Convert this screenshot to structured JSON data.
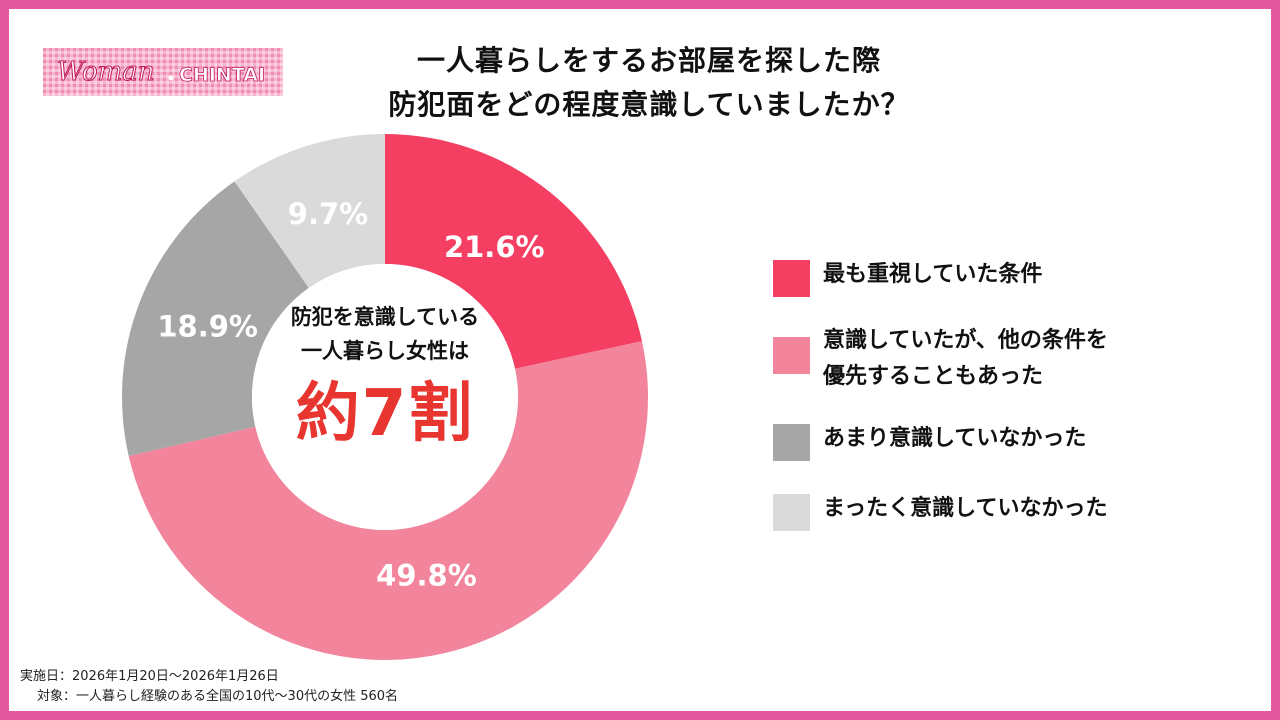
{
  "logo": {
    "text_woman": "Woman",
    "text_chintai": "CHINTAI"
  },
  "title": {
    "line1": "一人暮らしをするお部屋を探した際",
    "line2": "防犯面をどの程度意識していましたか？"
  },
  "center_text": {
    "line1": "防犯を意識している",
    "line2": "一人暮らし女性は",
    "big": "約7割"
  },
  "colors": {
    "border": "#e4599e",
    "accent_red": "#e8352f",
    "series": [
      "#f43f62",
      "#f2859c",
      "#a6a6a6",
      "#dadada"
    ]
  },
  "chart_data": {
    "type": "pie",
    "donut": true,
    "start": "12 o'clock, clockwise",
    "categories": [
      "最も重視していた条件",
      "意識していたが、他の条件を優先することもあった",
      "あまり意識していなかった",
      "まったく意識していなかった"
    ],
    "values": [
      21.6,
      49.8,
      18.9,
      9.7
    ],
    "labels": [
      "21.6%",
      "49.8%",
      "18.9%",
      "9.7%"
    ],
    "legend_placement": "right"
  },
  "legend": {
    "items": [
      {
        "lines": [
          "最も重視していた条件"
        ]
      },
      {
        "lines": [
          "意識していたが、他の条件を",
          "優先することもあった"
        ]
      },
      {
        "lines": [
          "あまり意識していなかった"
        ]
      },
      {
        "lines": [
          "まったく意識していなかった"
        ]
      }
    ]
  },
  "footer": {
    "date": "実施日：2026年1月20日～2026年1月26日",
    "target": "対象：一人暮らし経験のある全国の10代～30代の女性 560名"
  }
}
